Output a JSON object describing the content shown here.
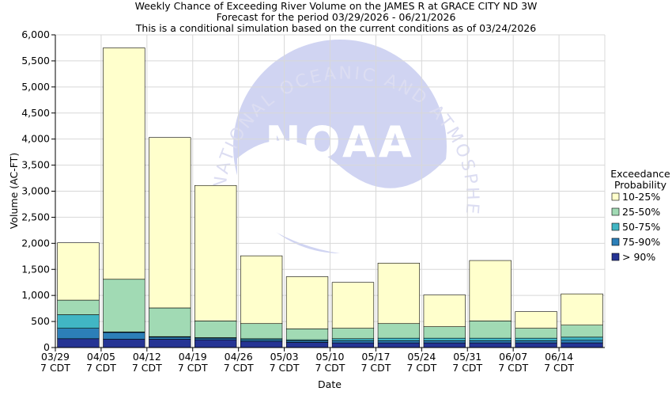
{
  "header": {
    "title": "Weekly Chance of Exceeding River Volume on the JAMES R at GRACE CITY ND 3W",
    "subtitle1": "Forecast for the period 03/29/2026 - 06/21/2026",
    "subtitle2": "This is a conditional simulation based on the current conditions as of 03/24/2026"
  },
  "watermark": {
    "logo_text": "NOAA",
    "ring_text": "NATIONAL OCEANIC AND ATMOSPHERIC ADMINISTRATION",
    "colors": {
      "ring": "#dcdcf4",
      "center": "#c8cdf0"
    }
  },
  "legend": {
    "title_line1": "Exceedance",
    "title_line2": "Probability",
    "placement": "right",
    "items": [
      {
        "label": "10-25%",
        "color": "#ffffcc"
      },
      {
        "label": "25-50%",
        "color": "#a1dab4"
      },
      {
        "label": "50-75%",
        "color": "#41b6c4"
      },
      {
        "label": "75-90%",
        "color": "#2c7fb8"
      },
      {
        "label": "> 90%",
        "color": "#253494"
      }
    ]
  },
  "chart_data": {
    "type": "bar",
    "stacked": true,
    "xlabel": "Date",
    "ylabel": "Volume (AC-FT)",
    "ylim": [
      0,
      6000
    ],
    "yticks": [
      0,
      500,
      1000,
      1500,
      2000,
      2500,
      3000,
      3500,
      4000,
      4500,
      5000,
      5500,
      6000
    ],
    "ytick_labels": [
      "0",
      "500",
      "1,000",
      "1,500",
      "2,000",
      "2,500",
      "3,000",
      "3,500",
      "4,000",
      "4,500",
      "5,000",
      "5,500",
      "6,000"
    ],
    "x_ticks": [
      {
        "date": "03/29",
        "zone": "7 CDT"
      },
      {
        "date": "04/05",
        "zone": "7 CDT"
      },
      {
        "date": "04/12",
        "zone": "7 CDT"
      },
      {
        "date": "04/19",
        "zone": "7 CDT"
      },
      {
        "date": "04/26",
        "zone": "7 CDT"
      },
      {
        "date": "05/03",
        "zone": "7 CDT"
      },
      {
        "date": "05/10",
        "zone": "7 CDT"
      },
      {
        "date": "05/17",
        "zone": "7 CDT"
      },
      {
        "date": "05/24",
        "zone": "7 CDT"
      },
      {
        "date": "05/31",
        "zone": "7 CDT"
      },
      {
        "date": "06/07",
        "zone": "7 CDT"
      },
      {
        "date": "06/14",
        "zone": "7 CDT"
      }
    ],
    "grid": true,
    "series_note_order": "boundaries per week: [>90%, 75-90%, 50-75%, 25-50%, 10-25%] cumulative tops",
    "weeks": [
      {
        "week": "03/29",
        "levels": [
          170,
          370,
          630,
          910,
          2010
        ]
      },
      {
        "week": "04/05",
        "levels": [
          160,
          290,
          300,
          1310,
          5750
        ]
      },
      {
        "week": "04/12",
        "levels": [
          160,
          200,
          210,
          760,
          4030
        ]
      },
      {
        "week": "04/19",
        "levels": [
          150,
          180,
          190,
          510,
          3110
        ]
      },
      {
        "week": "04/26",
        "levels": [
          120,
          150,
          170,
          460,
          1760
        ]
      },
      {
        "week": "05/03",
        "levels": [
          100,
          130,
          150,
          360,
          1360
        ]
      },
      {
        "week": "05/10",
        "levels": [
          90,
          130,
          170,
          370,
          1250
        ]
      },
      {
        "week": "05/17",
        "levels": [
          90,
          130,
          180,
          460,
          1620
        ]
      },
      {
        "week": "05/24",
        "levels": [
          90,
          130,
          180,
          400,
          1010
        ]
      },
      {
        "week": "05/31",
        "levels": [
          90,
          130,
          180,
          510,
          1670
        ]
      },
      {
        "week": "06/07",
        "levels": [
          90,
          130,
          180,
          370,
          690
        ]
      },
      {
        "week": "06/14",
        "levels": [
          90,
          140,
          200,
          430,
          1030
        ]
      }
    ]
  }
}
